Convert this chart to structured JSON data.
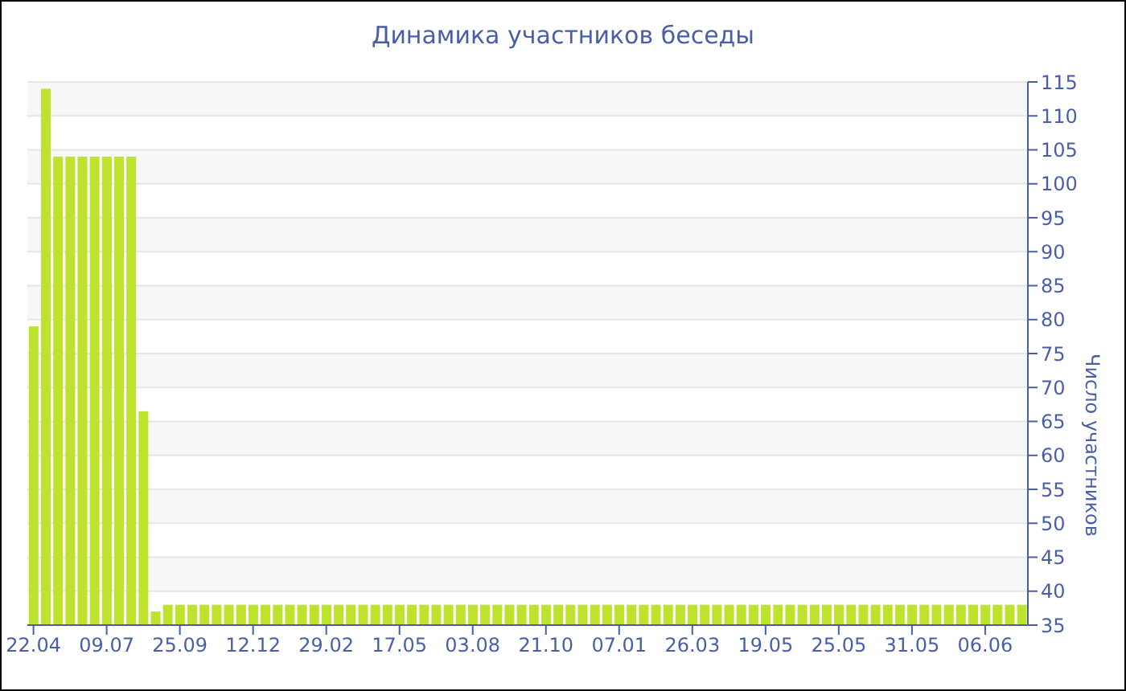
{
  "chart_data": {
    "type": "bar",
    "title": "Динамика участников беседы",
    "ylabel": "Число участников",
    "categories": [
      "22.04",
      null,
      null,
      null,
      null,
      null,
      "09.07",
      null,
      null,
      null,
      null,
      null,
      "25.09",
      null,
      null,
      null,
      null,
      null,
      "12.12",
      null,
      null,
      null,
      null,
      null,
      "29.02",
      null,
      null,
      null,
      null,
      null,
      "17.05",
      null,
      null,
      null,
      null,
      null,
      "03.08",
      null,
      null,
      null,
      null,
      null,
      "21.10",
      null,
      null,
      null,
      null,
      null,
      "07.01",
      null,
      null,
      null,
      null,
      null,
      "26.03",
      null,
      null,
      null,
      null,
      null,
      "19.05",
      null,
      null,
      null,
      null,
      null,
      "25.05",
      null,
      null,
      null,
      null,
      null,
      "31.05",
      null,
      null,
      null,
      null,
      null,
      "06.06",
      null,
      null,
      null
    ],
    "values": [
      79,
      114,
      104,
      104,
      104,
      104,
      104,
      104,
      104,
      66.5,
      37,
      38,
      38,
      38,
      38,
      38,
      38,
      38,
      38,
      38,
      38,
      38,
      38,
      38,
      38,
      38,
      38,
      38,
      38,
      38,
      38,
      38,
      38,
      38,
      38,
      38,
      38,
      38,
      38,
      38,
      38,
      38,
      38,
      38,
      38,
      38,
      38,
      38,
      38,
      38,
      38,
      38,
      38,
      38,
      38,
      38,
      38,
      38,
      38,
      38,
      38,
      38,
      38,
      38,
      38,
      38,
      38,
      38,
      38,
      38,
      38,
      38,
      38,
      38,
      38,
      38,
      38,
      38,
      38,
      38,
      38,
      38
    ],
    "color": "#bde32f",
    "ylim": [
      35,
      115
    ],
    "yticks": [
      35,
      40,
      45,
      50,
      55,
      60,
      65,
      70,
      75,
      80,
      85,
      90,
      95,
      100,
      105,
      110,
      115
    ],
    "grid": "y"
  }
}
